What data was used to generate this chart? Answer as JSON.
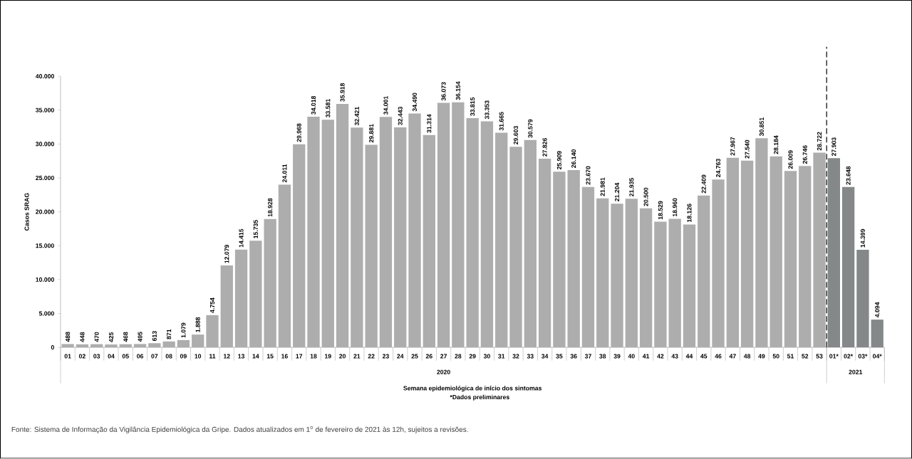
{
  "chart_data": {
    "type": "bar",
    "categories": [
      "01",
      "02",
      "03",
      "04",
      "05",
      "06",
      "07",
      "08",
      "09",
      "10",
      "11",
      "12",
      "13",
      "14",
      "15",
      "16",
      "17",
      "18",
      "19",
      "20",
      "21",
      "22",
      "23",
      "24",
      "25",
      "26",
      "27",
      "28",
      "29",
      "30",
      "31",
      "32",
      "33",
      "34",
      "35",
      "36",
      "37",
      "38",
      "39",
      "40",
      "41",
      "42",
      "43",
      "44",
      "45",
      "46",
      "47",
      "48",
      "49",
      "50",
      "51",
      "52",
      "53",
      "01*",
      "02*",
      "03*",
      "04*"
    ],
    "values": [
      488,
      448,
      470,
      425,
      468,
      495,
      613,
      871,
      1079,
      1888,
      4754,
      12079,
      14415,
      15735,
      18928,
      24011,
      29968,
      34018,
      33581,
      35918,
      32421,
      29881,
      34001,
      32443,
      34490,
      31314,
      36073,
      36154,
      33815,
      33353,
      31665,
      29603,
      30579,
      27826,
      25909,
      26140,
      23670,
      21981,
      21204,
      21935,
      20500,
      18529,
      18960,
      18126,
      22409,
      24763,
      27967,
      27540,
      30851,
      28184,
      26009,
      26746,
      28722,
      27903,
      23648,
      14399,
      4094
    ],
    "value_labels": [
      "488",
      "448",
      "470",
      "425",
      "468",
      "495",
      "613",
      "871",
      "1.079",
      "1.888",
      "4.754",
      "12.079",
      "14.415",
      "15.735",
      "18.928",
      "24.011",
      "29.968",
      "34.018",
      "33.581",
      "35.918",
      "32.421",
      "29.881",
      "34.001",
      "32.443",
      "34.490",
      "31.314",
      "36.073",
      "36.154",
      "33.815",
      "33.353",
      "31.665",
      "29.603",
      "30.579",
      "27.826",
      "25.909",
      "26.140",
      "23.670",
      "21.981",
      "21.204",
      "21.935",
      "20.500",
      "18.529",
      "18.960",
      "18.126",
      "22.409",
      "24.763",
      "27.967",
      "27.540",
      "30.851",
      "28.184",
      "26.009",
      "26.746",
      "28.722",
      "27.903",
      "23.648",
      "14.399",
      "4.094"
    ],
    "colors": [
      "#adadad",
      "#adadad",
      "#adadad",
      "#adadad",
      "#adadad",
      "#adadad",
      "#adadad",
      "#adadad",
      "#adadad",
      "#adadad",
      "#adadad",
      "#adadad",
      "#adadad",
      "#adadad",
      "#adadad",
      "#adadad",
      "#adadad",
      "#adadad",
      "#adadad",
      "#adadad",
      "#adadad",
      "#adadad",
      "#adadad",
      "#adadad",
      "#adadad",
      "#adadad",
      "#adadad",
      "#adadad",
      "#adadad",
      "#adadad",
      "#adadad",
      "#adadad",
      "#adadad",
      "#adadad",
      "#adadad",
      "#adadad",
      "#adadad",
      "#adadad",
      "#adadad",
      "#adadad",
      "#adadad",
      "#adadad",
      "#adadad",
      "#adadad",
      "#adadad",
      "#adadad",
      "#adadad",
      "#adadad",
      "#adadad",
      "#adadad",
      "#adadad",
      "#adadad",
      "#adadad",
      "#858889",
      "#858889",
      "#858889",
      "#858889"
    ],
    "ylabel": "Casos SRAG",
    "xlabel": "Semana epidemiológica de início dos sintomas",
    "ylim": [
      0,
      40000
    ],
    "yticks": [
      0,
      {
        "value": 5000,
        "label": "5.000"
      },
      {
        "value": 10000,
        "label": "10.000"
      },
      {
        "value": 15000,
        "label": "15.000"
      },
      {
        "value": 20000,
        "label": "20.000"
      },
      {
        "value": 25000,
        "label": "25.000"
      },
      {
        "value": 30000,
        "label": "30.000"
      },
      {
        "value": 35000,
        "label": "35.000"
      },
      {
        "value": 40000,
        "label": "40.000"
      }
    ],
    "annotations": [
      "2020",
      "2021",
      "*Dados preliminares",
      "Fonte: Sistema de Informação da Vigilância Epidemiológica da Gripe. Dados atualizados em 1$^{o}$ de fevereiro de 2021 às 12h, sujeitos a revisões."
    ],
    "grid": false
  }
}
